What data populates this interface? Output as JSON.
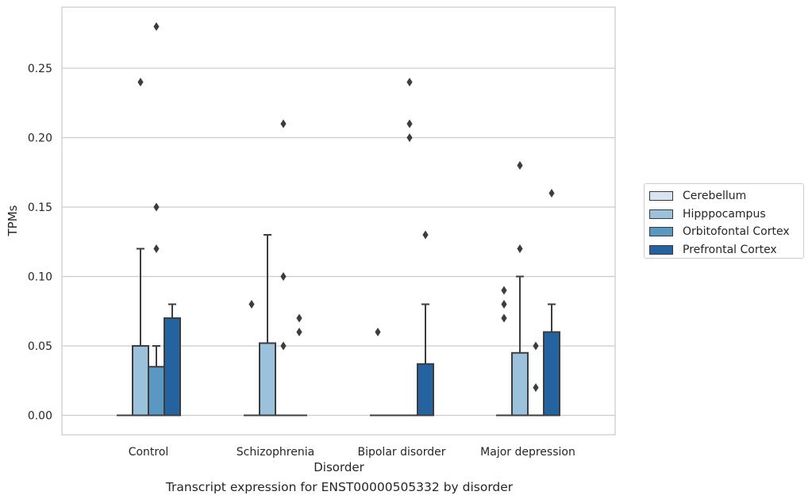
{
  "chart_data": {
    "type": "box",
    "xlabel": "Disorder",
    "ylabel": "TPMs",
    "caption": "Transcript expression for ENST00000505332 by disorder",
    "categories": [
      "Control",
      "Schizophrenia",
      "Bipolar disorder",
      "Major depression"
    ],
    "ylim": [
      -0.014,
      0.295
    ],
    "yticks": [
      0.0,
      0.05,
      0.1,
      0.15,
      0.2,
      0.25
    ],
    "ytick_labels": [
      "0.00",
      "0.05",
      "0.10",
      "0.15",
      "0.20",
      "0.25"
    ],
    "grid": "horizontal",
    "legend_position": "right",
    "series": [
      {
        "name": "Cerebellum",
        "color": "#d8e5f1",
        "boxes": [
          {
            "q1": 0,
            "median": 0,
            "q3": 0,
            "whislo": 0,
            "whishi": 0,
            "fliers": []
          },
          {
            "q1": 0,
            "median": 0,
            "q3": 0,
            "whislo": 0,
            "whishi": 0,
            "fliers": [
              0.08
            ]
          },
          {
            "q1": 0,
            "median": 0,
            "q3": 0,
            "whislo": 0,
            "whishi": 0,
            "fliers": [
              0.06
            ]
          },
          {
            "q1": 0,
            "median": 0,
            "q3": 0,
            "whislo": 0,
            "whishi": 0,
            "fliers": [
              0.09,
              0.08,
              0.07
            ]
          }
        ]
      },
      {
        "name": "Hipppocampus",
        "color": "#9cc1da",
        "boxes": [
          {
            "q1": 0,
            "median": 0,
            "q3": 0.05,
            "whislo": 0,
            "whishi": 0.12,
            "fliers": [
              0.24
            ]
          },
          {
            "q1": 0,
            "median": 0,
            "q3": 0.052,
            "whislo": 0,
            "whishi": 0.13,
            "fliers": []
          },
          {
            "q1": 0,
            "median": 0,
            "q3": 0,
            "whislo": 0,
            "whishi": 0,
            "fliers": []
          },
          {
            "q1": 0,
            "median": 0,
            "q3": 0.045,
            "whislo": 0,
            "whishi": 0.1,
            "fliers": [
              0.18,
              0.12
            ]
          }
        ]
      },
      {
        "name": "Orbitofontal Cortex",
        "color": "#5a97c3",
        "boxes": [
          {
            "q1": 0,
            "median": 0,
            "q3": 0.035,
            "whislo": 0,
            "whishi": 0.05,
            "fliers": [
              0.28,
              0.15,
              0.12
            ]
          },
          {
            "q1": 0,
            "median": 0,
            "q3": 0,
            "whislo": 0,
            "whishi": 0,
            "fliers": [
              0.21,
              0.1,
              0.05
            ]
          },
          {
            "q1": 0,
            "median": 0,
            "q3": 0,
            "whislo": 0,
            "whishi": 0,
            "fliers": [
              0.24,
              0.21,
              0.2
            ]
          },
          {
            "q1": 0,
            "median": 0,
            "q3": 0,
            "whislo": 0,
            "whishi": 0,
            "fliers": [
              0.05,
              0.02
            ]
          }
        ]
      },
      {
        "name": "Prefrontal Cortex",
        "color": "#2462a0",
        "boxes": [
          {
            "q1": 0,
            "median": 0,
            "q3": 0.07,
            "whislo": 0,
            "whishi": 0.08,
            "fliers": []
          },
          {
            "q1": 0,
            "median": 0,
            "q3": 0,
            "whislo": 0,
            "whishi": 0,
            "fliers": [
              0.07,
              0.06
            ]
          },
          {
            "q1": 0,
            "median": 0,
            "q3": 0.037,
            "whislo": 0,
            "whishi": 0.08,
            "fliers": [
              0.13
            ]
          },
          {
            "q1": 0,
            "median": 0,
            "q3": 0.06,
            "whislo": 0,
            "whishi": 0.08,
            "fliers": [
              0.16
            ]
          }
        ]
      }
    ]
  }
}
